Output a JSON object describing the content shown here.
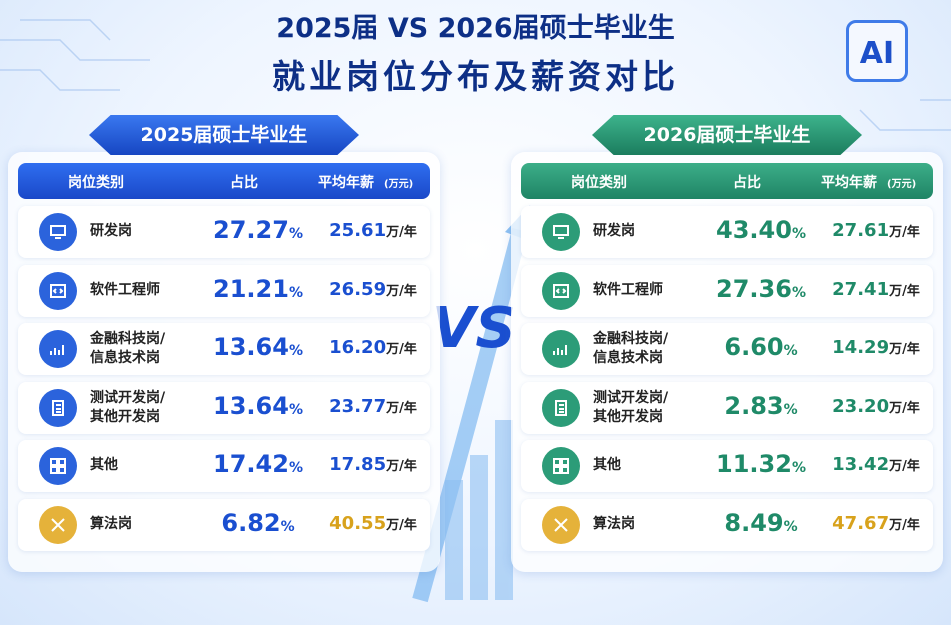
{
  "header": {
    "title_line1": "2025届 VS 2026届硕士毕业生",
    "title_line2": "就业岗位分布及薪资对比",
    "badge": "AI"
  },
  "vs": "VS",
  "panels": [
    {
      "title": "2025届硕士毕业生",
      "col_category": "岗位类别",
      "col_share": "占比",
      "col_salary": "平均年薪",
      "col_salary_unit": "(万元)",
      "share_unit": "%",
      "salary_unit": "万/年",
      "rows": [
        {
          "category": [
            "研发岗"
          ],
          "share": "27.27",
          "salary": "25.61"
        },
        {
          "category": [
            "软件工程师"
          ],
          "share": "21.21",
          "salary": "26.59"
        },
        {
          "category": [
            "金融科技岗/",
            "信息技术岗"
          ],
          "share": "13.64",
          "salary": "16.20"
        },
        {
          "category": [
            "测试开发岗/",
            "其他开发岗"
          ],
          "share": "13.64",
          "salary": "23.77"
        },
        {
          "category": [
            "其他"
          ],
          "share": "17.42",
          "salary": "17.85"
        },
        {
          "category": [
            "算法岗"
          ],
          "share": "6.82",
          "salary": "40.55"
        }
      ]
    },
    {
      "title": "2026届硕士毕业生",
      "col_category": "岗位类别",
      "col_share": "占比",
      "col_salary": "平均年薪",
      "col_salary_unit": "(万元)",
      "share_unit": "%",
      "salary_unit": "万/年",
      "rows": [
        {
          "category": [
            "研发岗"
          ],
          "share": "43.40",
          "salary": "27.61"
        },
        {
          "category": [
            "软件工程师"
          ],
          "share": "27.36",
          "salary": "27.41"
        },
        {
          "category": [
            "金融科技岗/",
            "信息技术岗"
          ],
          "share": "6.60",
          "salary": "14.29"
        },
        {
          "category": [
            "测试开发岗/",
            "其他开发岗"
          ],
          "share": "2.83",
          "salary": "23.20"
        },
        {
          "category": [
            "其他"
          ],
          "share": "11.32",
          "salary": "13.42"
        },
        {
          "category": [
            "算法岗"
          ],
          "share": "8.49",
          "salary": "47.67"
        }
      ]
    }
  ]
}
